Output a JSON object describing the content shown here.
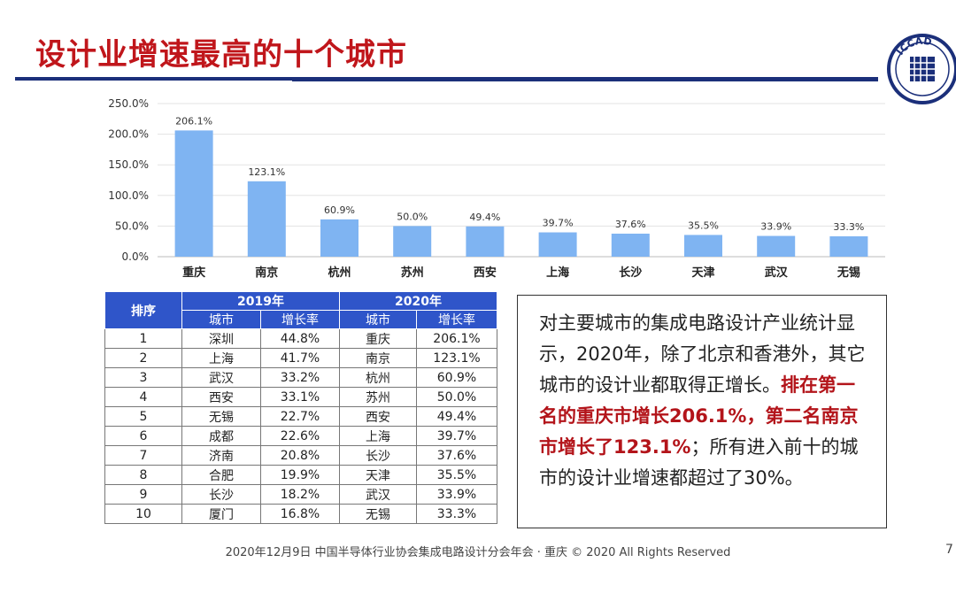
{
  "slide": {
    "title": "设计业增速最高的十个城市",
    "footer": "2020年12月9日  中国半导体行业协会集成电路设计分会年会 · 重庆 © 2020 All Rights Reserved",
    "page_number": "7",
    "logo_text": "ICCAD"
  },
  "colors": {
    "title_red": "#c0161b",
    "navy": "#1b2f7a",
    "bar_blue": "#7fb4f2",
    "header_blue": "#2f55c9",
    "highlight_red": "#b3141a"
  },
  "chart_data": {
    "type": "bar",
    "categories": [
      "重庆",
      "南京",
      "杭州",
      "苏州",
      "西安",
      "上海",
      "长沙",
      "天津",
      "武汉",
      "无锡"
    ],
    "values": [
      206.1,
      123.1,
      60.9,
      50.0,
      49.4,
      39.7,
      37.6,
      35.5,
      33.9,
      33.3
    ],
    "value_labels": [
      "206.1%",
      "123.1%",
      "60.9%",
      "50.0%",
      "49.4%",
      "39.7%",
      "37.6%",
      "35.5%",
      "33.9%",
      "33.3%"
    ],
    "yticks": [
      0,
      50,
      100,
      150,
      200,
      250
    ],
    "ytick_labels": [
      "0.0%",
      "50.0%",
      "100.0%",
      "150.0%",
      "200.0%",
      "250.0%"
    ],
    "ylim": [
      0,
      250
    ],
    "grid": true,
    "legend": "none"
  },
  "table": {
    "header_rank": "排序",
    "group_2019": "2019年",
    "group_2020": "2020年",
    "sub_city": "城市",
    "sub_rate": "增长率",
    "rows": [
      {
        "rank": "1",
        "city_2019": "深圳",
        "rate_2019": "44.8%",
        "city_2020": "重庆",
        "rate_2020": "206.1%"
      },
      {
        "rank": "2",
        "city_2019": "上海",
        "rate_2019": "41.7%",
        "city_2020": "南京",
        "rate_2020": "123.1%"
      },
      {
        "rank": "3",
        "city_2019": "武汉",
        "rate_2019": "33.2%",
        "city_2020": "杭州",
        "rate_2020": "60.9%"
      },
      {
        "rank": "4",
        "city_2019": "西安",
        "rate_2019": "33.1%",
        "city_2020": "苏州",
        "rate_2020": "50.0%"
      },
      {
        "rank": "5",
        "city_2019": "无锡",
        "rate_2019": "22.7%",
        "city_2020": "西安",
        "rate_2020": "49.4%"
      },
      {
        "rank": "6",
        "city_2019": "成都",
        "rate_2019": "22.6%",
        "city_2020": "上海",
        "rate_2020": "39.7%"
      },
      {
        "rank": "7",
        "city_2019": "济南",
        "rate_2019": "20.8%",
        "city_2020": "长沙",
        "rate_2020": "37.6%"
      },
      {
        "rank": "8",
        "city_2019": "合肥",
        "rate_2019": "19.9%",
        "city_2020": "天津",
        "rate_2020": "35.5%"
      },
      {
        "rank": "9",
        "city_2019": "长沙",
        "rate_2019": "18.2%",
        "city_2020": "武汉",
        "rate_2020": "33.9%"
      },
      {
        "rank": "10",
        "city_2019": "厦门",
        "rate_2019": "16.8%",
        "city_2020": "无锡",
        "rate_2020": "33.3%"
      }
    ]
  },
  "note": {
    "part1": "对主要城市的集成电路设计产业统计显示，2020年，除了北京和香港外，其它城市的设计业都取得正增长。",
    "highlight": "排在第一名的重庆市增长206.1%，第二名南京市增长了123.1%",
    "part2": "；所有进入前十的城市的设计业增速都超过了30%。"
  }
}
